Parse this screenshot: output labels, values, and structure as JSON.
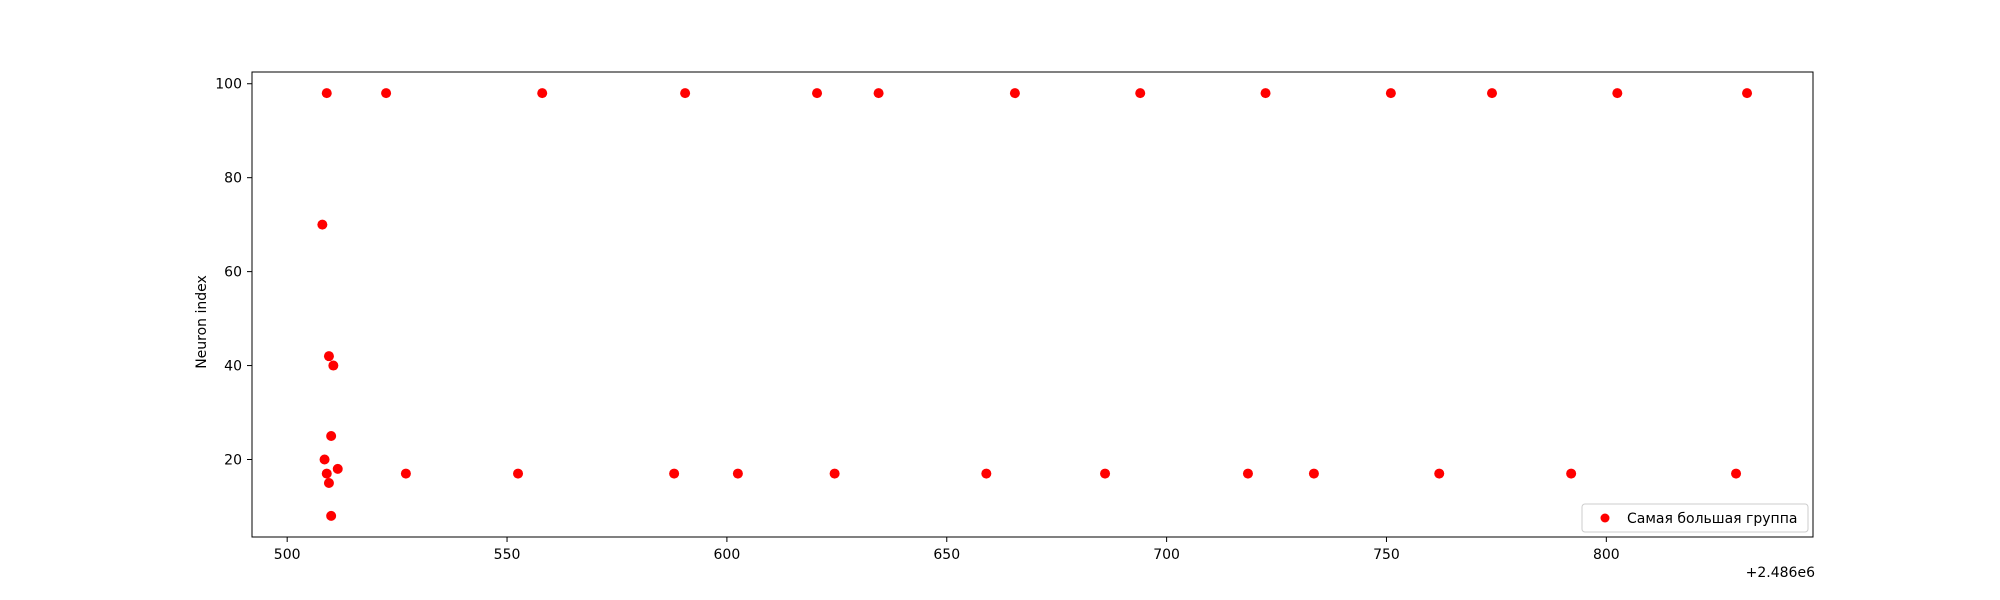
{
  "chart_data": {
    "type": "scatter",
    "title": "",
    "xlabel": "",
    "ylabel": "Neuron index",
    "x_offset_label": "+2.486e6",
    "xlim": [
      492,
      847
    ],
    "ylim": [
      3.5,
      102.5
    ],
    "xticks": [
      500,
      550,
      600,
      650,
      700,
      750,
      800
    ],
    "yticks": [
      20,
      40,
      60,
      80,
      100
    ],
    "grid": false,
    "legend_position": "lower right",
    "series": [
      {
        "name": "Самая большая группа",
        "color": "#ff0000",
        "x": [
          509,
          522.5,
          558,
          590.5,
          620.5,
          634.5,
          665.5,
          694,
          722.5,
          751,
          774,
          802.5,
          832,
          508,
          509.5,
          510.5,
          510,
          508.5,
          509,
          511.5,
          509.5,
          510,
          527,
          552.5,
          588,
          602.5,
          624.5,
          659,
          686,
          718.5,
          733.5,
          762,
          792,
          829.5
        ],
        "y": [
          98,
          98,
          98,
          98,
          98,
          98,
          98,
          98,
          98,
          98,
          98,
          98,
          98,
          70,
          42,
          40,
          25,
          20,
          17,
          18,
          15,
          8,
          17,
          17,
          17,
          17,
          17,
          17,
          17,
          17,
          17,
          17,
          17,
          17
        ]
      }
    ]
  }
}
